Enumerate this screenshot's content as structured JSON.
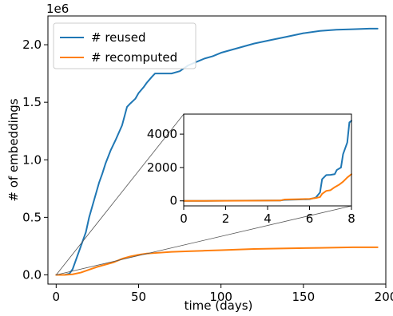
{
  "chart_data": [
    {
      "type": "line",
      "xlabel": "time (days)",
      "ylabel": "# of embeddings",
      "y_offset_text": "1e6",
      "xlim": [
        -5,
        200
      ],
      "ylim": [
        -0.08,
        2.25
      ],
      "x_ticks": [
        0,
        50,
        100,
        150,
        200
      ],
      "y_ticks": [
        0.0,
        0.5,
        1.0,
        1.5,
        2.0
      ],
      "x_tick_labels": [
        "0",
        "50",
        "100",
        "150",
        "200"
      ],
      "y_tick_labels": [
        "0.0",
        "0.5",
        "1.0",
        "1.5",
        "2.0"
      ],
      "grid": false,
      "legend": "top-left",
      "series": [
        {
          "name": "# reused",
          "color": "#1f77b4",
          "x": [
            0,
            5,
            8,
            10,
            12,
            15,
            18,
            20,
            23,
            26,
            28,
            30,
            33,
            36,
            40,
            43,
            45,
            48,
            50,
            53,
            55,
            58,
            60,
            65,
            70,
            75,
            80,
            85,
            90,
            95,
            100,
            110,
            120,
            130,
            140,
            150,
            160,
            170,
            180,
            190,
            195
          ],
          "y": [
            0.0,
            0.0,
            0.01,
            0.05,
            0.13,
            0.25,
            0.37,
            0.5,
            0.65,
            0.8,
            0.88,
            0.97,
            1.08,
            1.17,
            1.3,
            1.46,
            1.49,
            1.53,
            1.58,
            1.63,
            1.67,
            1.72,
            1.75,
            1.75,
            1.75,
            1.77,
            1.82,
            1.85,
            1.88,
            1.9,
            1.93,
            1.97,
            2.01,
            2.04,
            2.07,
            2.1,
            2.12,
            2.13,
            2.135,
            2.14,
            2.14
          ]
        },
        {
          "name": "# recomputed",
          "color": "#ff7f0e",
          "x": [
            0,
            5,
            10,
            15,
            20,
            25,
            30,
            35,
            40,
            45,
            50,
            55,
            60,
            70,
            80,
            90,
            100,
            120,
            140,
            160,
            180,
            195
          ],
          "y": [
            0.0,
            0.0,
            0.005,
            0.02,
            0.045,
            0.07,
            0.09,
            0.11,
            0.14,
            0.16,
            0.175,
            0.185,
            0.19,
            0.2,
            0.205,
            0.21,
            0.215,
            0.225,
            0.23,
            0.235,
            0.24,
            0.24
          ]
        }
      ]
    },
    {
      "type": "line",
      "role": "inset",
      "xlim": [
        0,
        8
      ],
      "ylim": [
        -300,
        5200
      ],
      "x_ticks": [
        0,
        2,
        4,
        6,
        8
      ],
      "y_ticks": [
        0,
        2000,
        4000
      ],
      "x_tick_labels": [
        "0",
        "2",
        "4",
        "6",
        "8"
      ],
      "y_tick_labels": [
        "0",
        "2000",
        "4000"
      ],
      "grid": false,
      "series": [
        {
          "name": "# reused",
          "color": "#1f77b4",
          "x": [
            0,
            1,
            2,
            3,
            4,
            4.6,
            4.8,
            5.5,
            6.0,
            6.3,
            6.5,
            6.6,
            6.8,
            7.0,
            7.2,
            7.3,
            7.5,
            7.6,
            7.8,
            7.9,
            8.0
          ],
          "y": [
            0,
            0,
            10,
            15,
            20,
            25,
            60,
            80,
            100,
            200,
            500,
            1300,
            1550,
            1560,
            1600,
            1850,
            2000,
            2800,
            3500,
            4700,
            4800
          ]
        },
        {
          "name": "# recomputed",
          "color": "#ff7f0e",
          "x": [
            0,
            1,
            2,
            3,
            4,
            4.6,
            4.8,
            5.5,
            6.0,
            6.3,
            6.5,
            6.6,
            6.8,
            7.0,
            7.2,
            7.4,
            7.6,
            7.8,
            8.0
          ],
          "y": [
            0,
            0,
            5,
            10,
            15,
            20,
            80,
            100,
            120,
            170,
            230,
            420,
            600,
            640,
            820,
            960,
            1150,
            1400,
            1600
          ]
        }
      ]
    }
  ]
}
